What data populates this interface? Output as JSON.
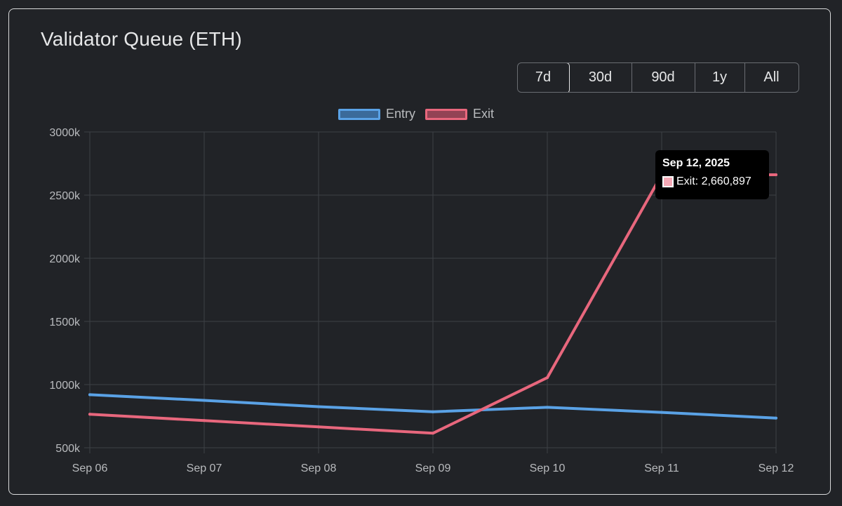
{
  "header": {
    "title": "Validator Queue (ETH)"
  },
  "range_buttons": [
    {
      "label": "7d",
      "active": true
    },
    {
      "label": "30d",
      "active": false
    },
    {
      "label": "90d",
      "active": false
    },
    {
      "label": "1y",
      "active": false
    },
    {
      "label": "All",
      "active": false
    }
  ],
  "tooltip": {
    "title": "Sep 12, 2025",
    "label": "Exit: 2,660,897",
    "color": "#f5a9b6"
  },
  "colors": {
    "entry": "#5aa2e6",
    "exit": "#e8677d",
    "grid": "#3d4046",
    "background": "#212327"
  },
  "chart_data": {
    "type": "line",
    "title": "Validator Queue (ETH)",
    "categories": [
      "Sep 06",
      "Sep 07",
      "Sep 08",
      "Sep 09",
      "Sep 10",
      "Sep 11",
      "Sep 12"
    ],
    "series": [
      {
        "name": "Entry",
        "color": "#5aa2e6",
        "values": [
          920000,
          875000,
          825000,
          785000,
          820000,
          780000,
          735000
        ]
      },
      {
        "name": "Exit",
        "color": "#e8677d",
        "values": [
          765000,
          715000,
          665000,
          615000,
          1055000,
          2660897,
          2660897
        ]
      }
    ],
    "y_ticks": [
      "500k",
      "1000k",
      "1500k",
      "2000k",
      "2500k",
      "3000k"
    ],
    "y_tick_values": [
      500000,
      1000000,
      1500000,
      2000000,
      2500000,
      3000000
    ],
    "ylim": [
      500000,
      3000000
    ],
    "grid": true,
    "legend_position": "top-center"
  }
}
